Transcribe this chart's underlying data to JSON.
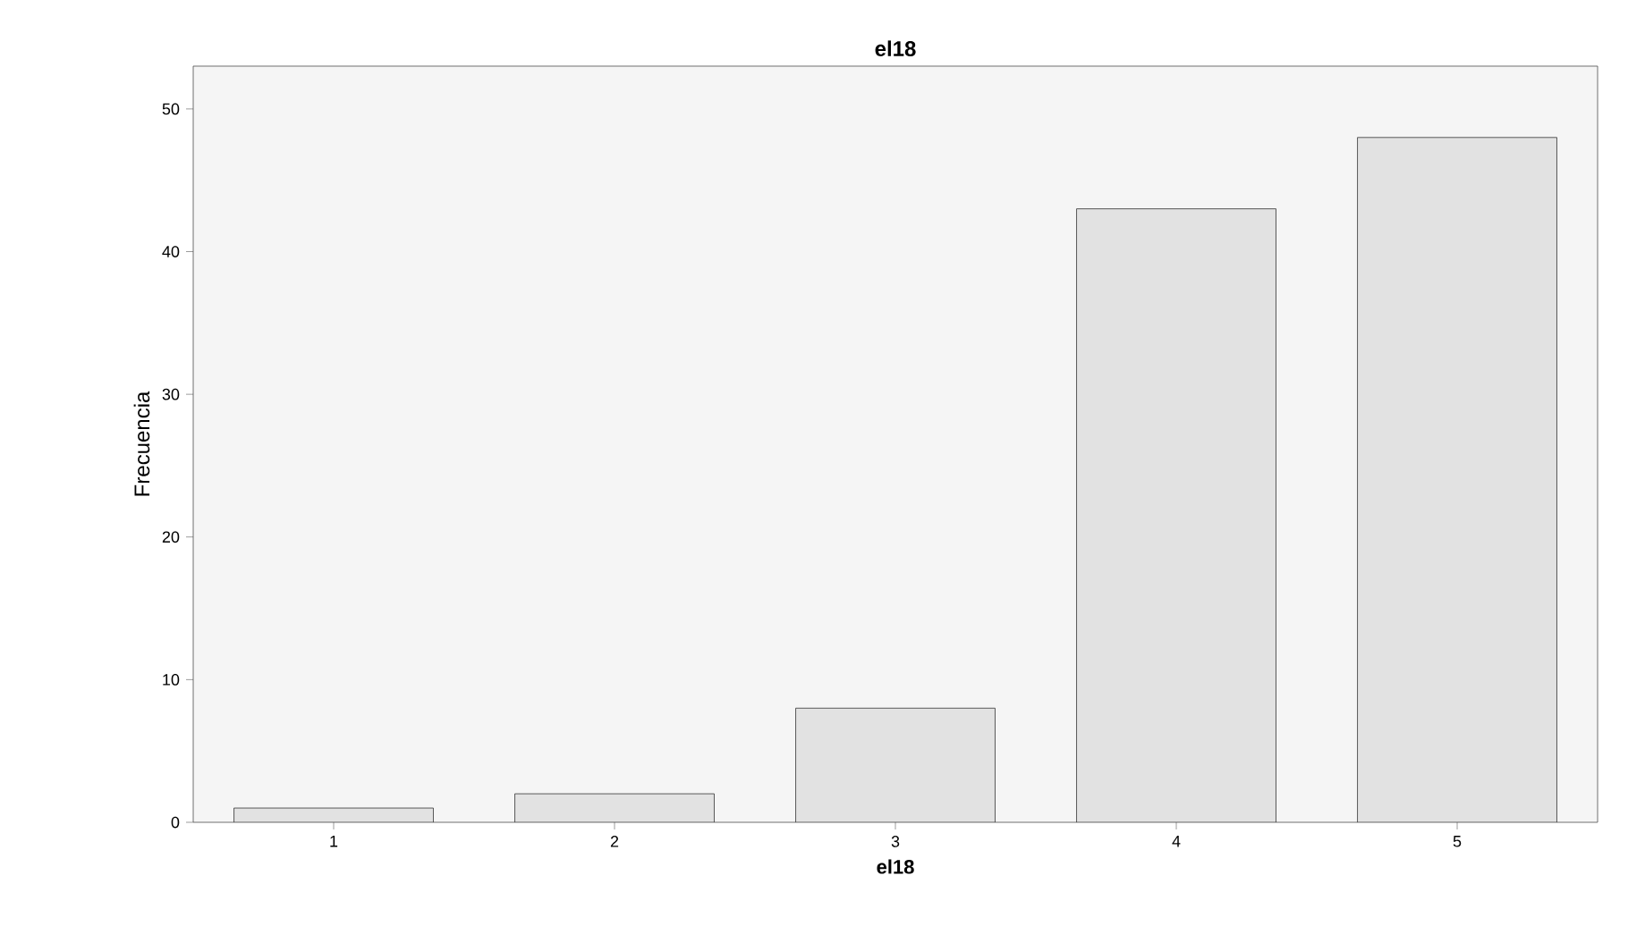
{
  "chart_data": {
    "type": "bar",
    "title": "el18",
    "xlabel": "el18",
    "ylabel": "Frecuencia",
    "categories": [
      "1",
      "2",
      "3",
      "4",
      "5"
    ],
    "values": [
      1,
      2,
      8,
      43,
      48
    ],
    "color": "#e2e2e2",
    "ylim": [
      0,
      53
    ],
    "yticks": [
      0,
      10,
      20,
      30,
      40,
      50
    ]
  }
}
